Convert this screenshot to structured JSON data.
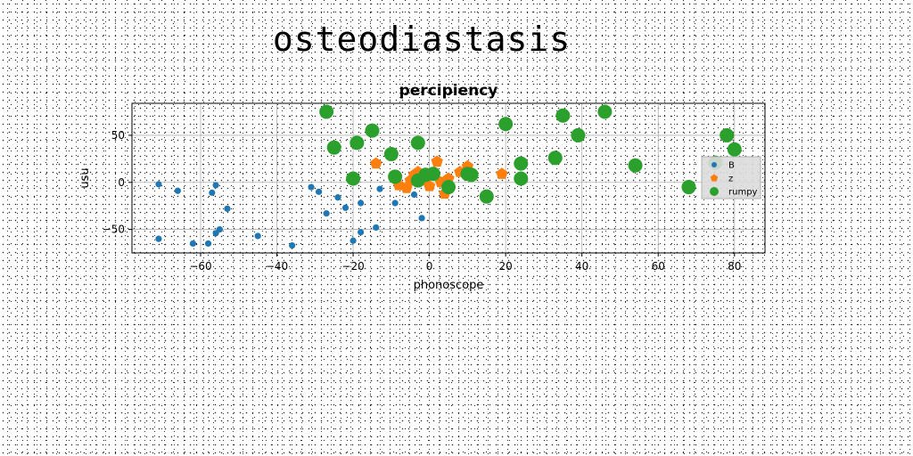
{
  "figure": {
    "suptitle": "osteodiastasis"
  },
  "chart_data": {
    "type": "scatter",
    "title": "percipiency",
    "xlabel": "phonoscope",
    "ylabel": "usu",
    "xlim": [
      -78,
      88
    ],
    "ylim": [
      -75,
      84
    ],
    "xticks": [
      -60,
      -40,
      -20,
      0,
      20,
      40,
      60,
      80
    ],
    "yticks": [
      -50,
      0,
      50
    ],
    "grid": true,
    "legend_position": "right",
    "series": [
      {
        "name": "B",
        "color": "#1f77b4",
        "marker": "circle",
        "points": [
          [
            -71,
            -2
          ],
          [
            -66,
            -9
          ],
          [
            -56,
            -3
          ],
          [
            -57,
            -11
          ],
          [
            -53,
            -28
          ],
          [
            -71,
            -60
          ],
          [
            -62,
            -65
          ],
          [
            -58,
            -65
          ],
          [
            -56,
            -54
          ],
          [
            -55,
            -50
          ],
          [
            -45,
            -57
          ],
          [
            -36,
            -67
          ],
          [
            -31,
            -5
          ],
          [
            -29,
            -10
          ],
          [
            -24,
            -16
          ],
          [
            -22,
            -27
          ],
          [
            -20,
            -62
          ],
          [
            -18,
            -53
          ],
          [
            -18,
            -22
          ],
          [
            -13,
            -7
          ],
          [
            -9,
            -22
          ],
          [
            -4,
            -13
          ],
          [
            -2,
            -38
          ],
          [
            -27,
            -33
          ],
          [
            -14,
            -48
          ]
        ]
      },
      {
        "name": "z",
        "color": "#ff7f0e",
        "marker": "pentagon",
        "points": [
          [
            -14,
            20
          ],
          [
            -9,
            5
          ],
          [
            -8,
            -3
          ],
          [
            -6,
            -6
          ],
          [
            -5,
            2
          ],
          [
            -4,
            8
          ],
          [
            -3,
            11
          ],
          [
            -1,
            2
          ],
          [
            0,
            -4
          ],
          [
            2,
            22
          ],
          [
            3,
            0
          ],
          [
            4,
            -12
          ],
          [
            5,
            4
          ],
          [
            8,
            11
          ],
          [
            10,
            17
          ],
          [
            19,
            9
          ]
        ]
      },
      {
        "name": "rumpy",
        "color": "#2ca02c",
        "marker": "circle",
        "points": [
          [
            -27,
            75
          ],
          [
            -25,
            37
          ],
          [
            -20,
            4
          ],
          [
            -19,
            42
          ],
          [
            -15,
            55
          ],
          [
            -10,
            30
          ],
          [
            -9,
            6
          ],
          [
            -3,
            42
          ],
          [
            -3,
            2
          ],
          [
            -1,
            8
          ],
          [
            1,
            9
          ],
          [
            5,
            -5
          ],
          [
            10,
            9
          ],
          [
            11,
            8
          ],
          [
            15,
            -15
          ],
          [
            20,
            62
          ],
          [
            24,
            20
          ],
          [
            24,
            4
          ],
          [
            33,
            26
          ],
          [
            35,
            71
          ],
          [
            39,
            50
          ],
          [
            46,
            75
          ],
          [
            54,
            18
          ],
          [
            68,
            -5
          ],
          [
            75,
            21
          ],
          [
            78,
            50
          ],
          [
            80,
            35
          ]
        ]
      }
    ]
  }
}
